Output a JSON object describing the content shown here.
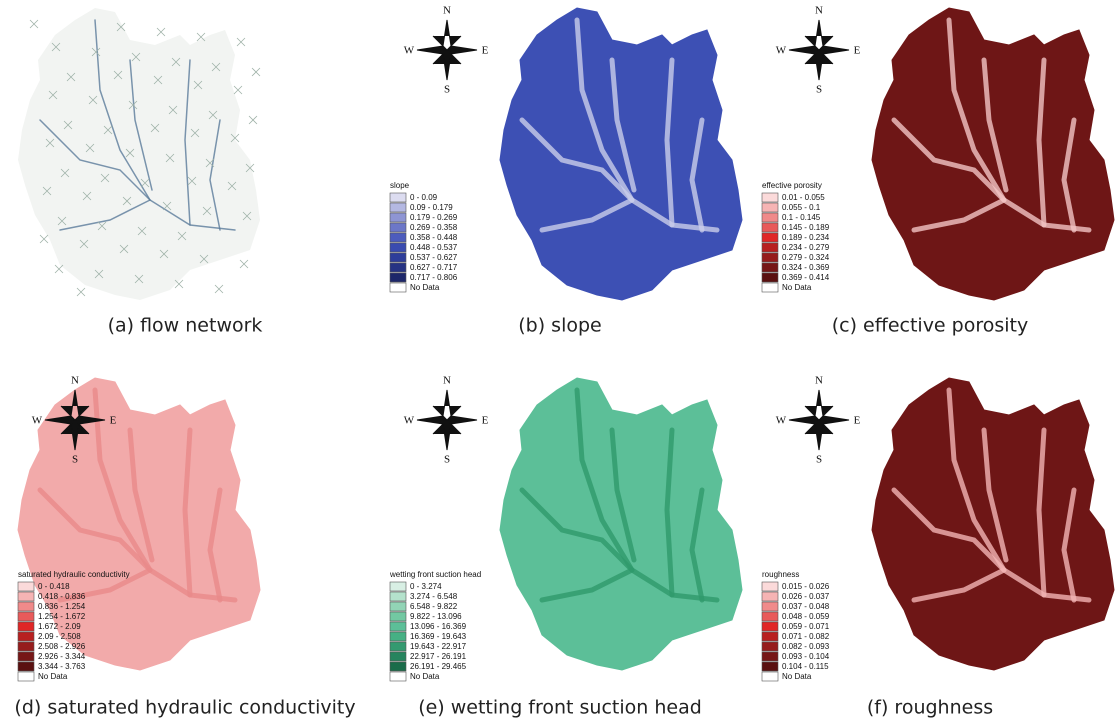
{
  "compass": {
    "n": "N",
    "s": "S",
    "w": "W",
    "e": "E"
  },
  "panels": [
    {
      "caption": "(a) flow network",
      "map_color": "#f2f4f2",
      "accent_color": "#5a7a9a"
    },
    {
      "caption": "(b) slope",
      "map_color": "#3d50b4",
      "accent_color": "#c9cdea",
      "legend": {
        "title": "slope",
        "items": [
          {
            "label": "0 - 0.09",
            "color": "#dcdcf0"
          },
          {
            "label": "0.09 - 0.179",
            "color": "#b4b8e2"
          },
          {
            "label": "0.179 - 0.269",
            "color": "#8e95d4"
          },
          {
            "label": "0.269 - 0.358",
            "color": "#6c77c8"
          },
          {
            "label": "0.358 - 0.448",
            "color": "#4d5cbd"
          },
          {
            "label": "0.448 - 0.537",
            "color": "#3a4bb0"
          },
          {
            "label": "0.537 - 0.627",
            "color": "#2e3d9a"
          },
          {
            "label": "0.627 - 0.717",
            "color": "#263384"
          },
          {
            "label": "0.717 - 0.806",
            "color": "#1d276a"
          },
          {
            "label": "No Data",
            "color": "#ffffff"
          }
        ]
      }
    },
    {
      "caption": "(c) effective porosity",
      "map_color": "#6e1616",
      "accent_color": "#f2c4c4",
      "legend": {
        "title": "effective porosity",
        "items": [
          {
            "label": "0.01 - 0.055",
            "color": "#fbdada"
          },
          {
            "label": "0.055 - 0.1",
            "color": "#f6b4b4"
          },
          {
            "label": "0.1 - 0.145",
            "color": "#f08a8a"
          },
          {
            "label": "0.145 - 0.189",
            "color": "#e85a5a"
          },
          {
            "label": "0.189 - 0.234",
            "color": "#e02626"
          },
          {
            "label": "0.234 - 0.279",
            "color": "#b82020"
          },
          {
            "label": "0.279 - 0.324",
            "color": "#961c1c"
          },
          {
            "label": "0.324 - 0.369",
            "color": "#761616"
          },
          {
            "label": "0.369 - 0.414",
            "color": "#5a1010"
          },
          {
            "label": "No Data",
            "color": "#ffffff"
          }
        ]
      }
    },
    {
      "caption": "(d) saturated hydraulic conductivity",
      "map_color": "#f2aaaa",
      "accent_color": "#e88a8a",
      "legend": {
        "title": "saturated hydraulic conductivity",
        "items": [
          {
            "label": "0 - 0.418",
            "color": "#fbdada"
          },
          {
            "label": "0.418 - 0.836",
            "color": "#f6b4b4"
          },
          {
            "label": "0.836 - 1.254",
            "color": "#f08a8a"
          },
          {
            "label": "1.254 - 1.672",
            "color": "#e85a5a"
          },
          {
            "label": "1.672 - 2.09",
            "color": "#e02626"
          },
          {
            "label": "2.09 - 2.508",
            "color": "#b82020"
          },
          {
            "label": "2.508 - 2.926",
            "color": "#961c1c"
          },
          {
            "label": "2.926 - 3.344",
            "color": "#761616"
          },
          {
            "label": "3.344 - 3.763",
            "color": "#5a1010"
          },
          {
            "label": "No Data",
            "color": "#ffffff"
          }
        ]
      }
    },
    {
      "caption": "(e) wetting front suction head",
      "map_color": "#5cbf98",
      "accent_color": "#2f9a6c",
      "legend": {
        "title": "wetting front suction head",
        "items": [
          {
            "label": "0 - 3.274",
            "color": "#d8efe4"
          },
          {
            "label": "3.274 - 6.548",
            "color": "#b4e2cc"
          },
          {
            "label": "6.548 - 9.822",
            "color": "#92d4b6"
          },
          {
            "label": "9.822 - 13.096",
            "color": "#72c8a2"
          },
          {
            "label": "13.096 - 16.369",
            "color": "#5cbf98"
          },
          {
            "label": "16.369 - 19.643",
            "color": "#46b084"
          },
          {
            "label": "19.643 - 22.917",
            "color": "#349a70"
          },
          {
            "label": "22.917 - 26.191",
            "color": "#26845e"
          },
          {
            "label": "26.191 - 29.465",
            "color": "#1a6c4a"
          },
          {
            "label": "No Data",
            "color": "#ffffff"
          }
        ]
      }
    },
    {
      "caption": "(f) roughness",
      "map_color": "#6e1616",
      "accent_color": "#f2b4b4",
      "legend": {
        "title": "roughness",
        "items": [
          {
            "label": "0.015 - 0.026",
            "color": "#fbdada"
          },
          {
            "label": "0.026 - 0.037",
            "color": "#f6b4b4"
          },
          {
            "label": "0.037 - 0.048",
            "color": "#f08a8a"
          },
          {
            "label": "0.048 - 0.059",
            "color": "#e85a5a"
          },
          {
            "label": "0.059 - 0.071",
            "color": "#e02626"
          },
          {
            "label": "0.071 - 0.082",
            "color": "#b82020"
          },
          {
            "label": "0.082 - 0.093",
            "color": "#961c1c"
          },
          {
            "label": "0.093 - 0.104",
            "color": "#761616"
          },
          {
            "label": "0.104 - 0.115",
            "color": "#5a1010"
          },
          {
            "label": "No Data",
            "color": "#ffffff"
          }
        ]
      }
    }
  ]
}
